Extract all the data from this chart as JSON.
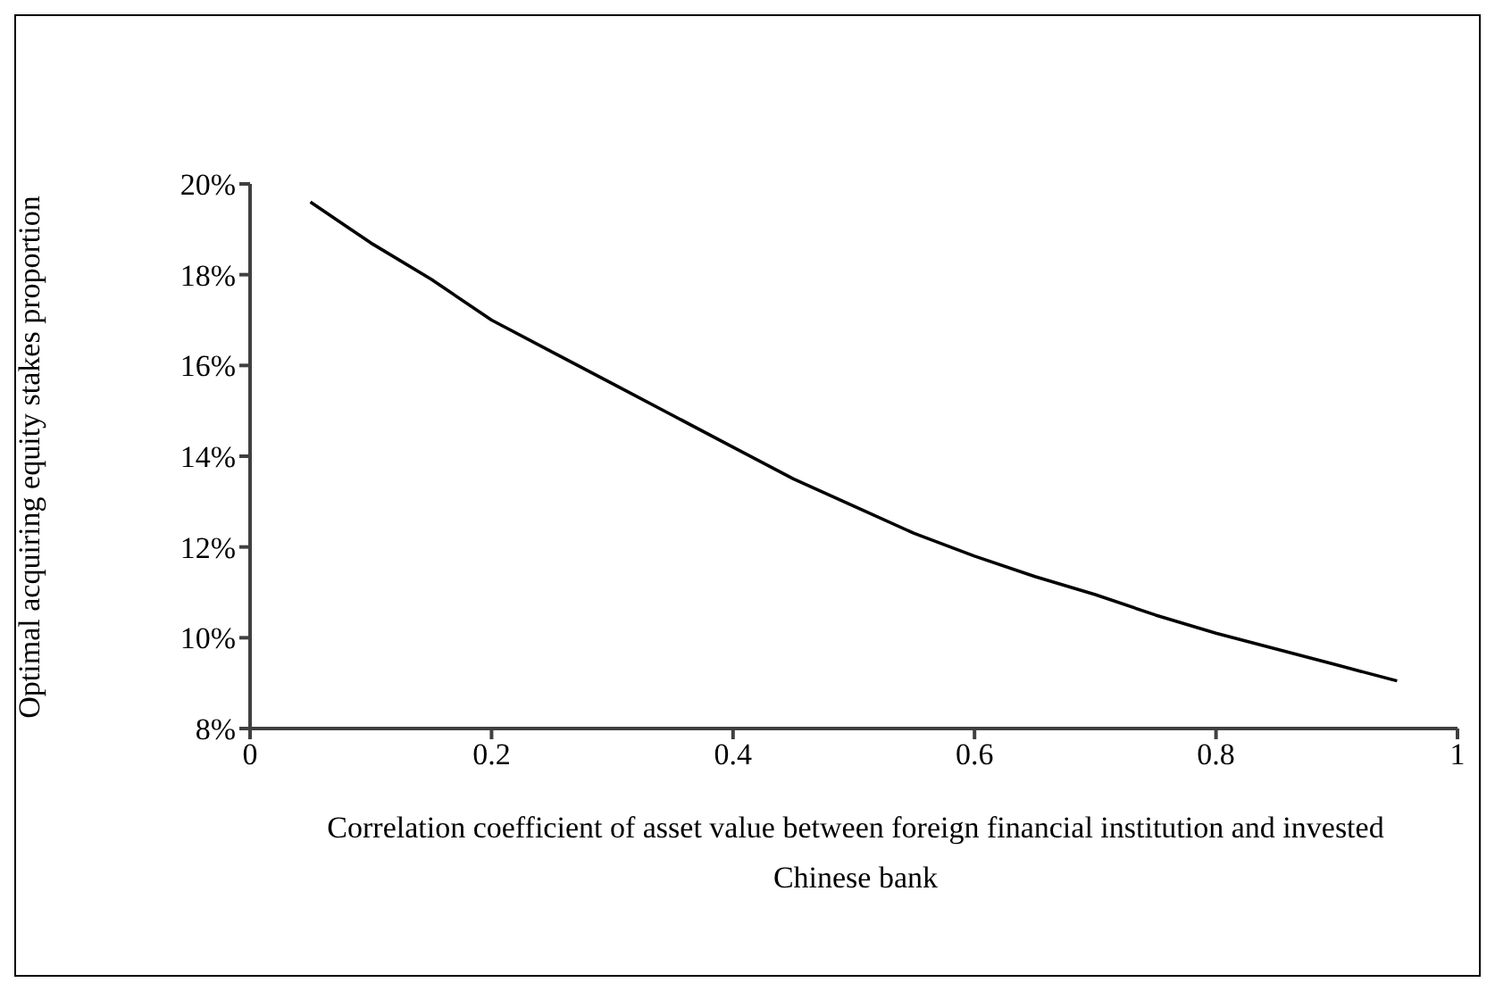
{
  "chart_data": {
    "type": "line",
    "xlabel": "Correlation coefficient of asset value between foreign financial institution and invested Chinese bank",
    "ylabel": "Optimal acquiring equity stakes proportion",
    "x": [
      0.05,
      0.1,
      0.15,
      0.2,
      0.25,
      0.3,
      0.35,
      0.4,
      0.45,
      0.5,
      0.55,
      0.6,
      0.65,
      0.7,
      0.75,
      0.8,
      0.85,
      0.9,
      0.95
    ],
    "series": [
      {
        "color": "#000000",
        "values": [
          19.6,
          18.7,
          17.9,
          17.0,
          16.3,
          15.6,
          14.9,
          14.2,
          13.5,
          12.9,
          12.3,
          11.8,
          11.35,
          10.95,
          10.5,
          10.1,
          9.75,
          9.4,
          9.05
        ]
      }
    ],
    "xlim": [
      0,
      1
    ],
    "xticks": [
      0,
      0.2,
      0.4,
      0.6,
      0.8,
      1
    ],
    "ylim": [
      8,
      20
    ],
    "yticks": [
      {
        "value": 8,
        "label": "8%"
      },
      {
        "value": 10,
        "label": "10%"
      },
      {
        "value": 12,
        "label": "12%"
      },
      {
        "value": 14,
        "label": "14%"
      },
      {
        "value": 16,
        "label": "16%"
      },
      {
        "value": 18,
        "label": "18%"
      },
      {
        "value": 20,
        "label": "20%"
      }
    ],
    "grid": false,
    "legend": false,
    "marker": "none",
    "line_style": "solid"
  }
}
